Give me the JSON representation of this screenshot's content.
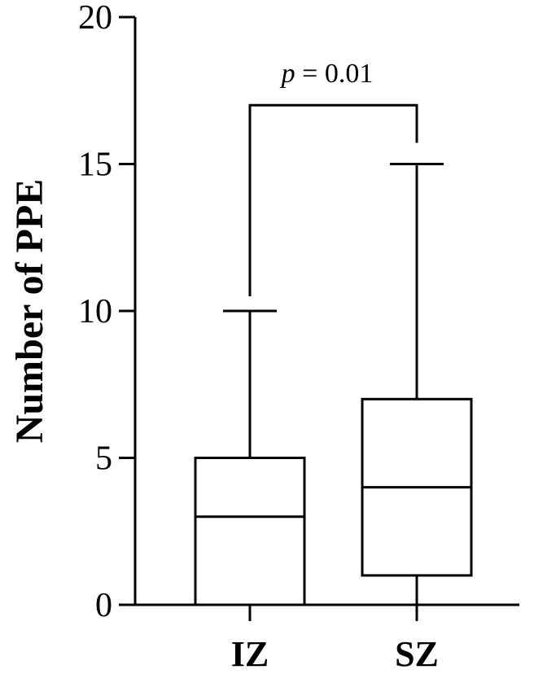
{
  "chart_data": {
    "type": "box",
    "ylabel": "Number of PPE",
    "xlabel": "",
    "ylim": [
      0,
      20
    ],
    "yticks": [
      0,
      5,
      10,
      15,
      20
    ],
    "categories": [
      "IZ",
      "SZ"
    ],
    "boxes": [
      {
        "category": "IZ",
        "min": 0,
        "q1": 0,
        "median": 3,
        "q3": 5,
        "max": 10
      },
      {
        "category": "SZ",
        "min": 0,
        "q1": 1,
        "median": 4,
        "q3": 7,
        "max": 15
      }
    ],
    "annotation": {
      "p_symbol": "p",
      "p_rest": " = 0.01",
      "bracket_level": 17
    },
    "grid": false,
    "legend": "none"
  }
}
